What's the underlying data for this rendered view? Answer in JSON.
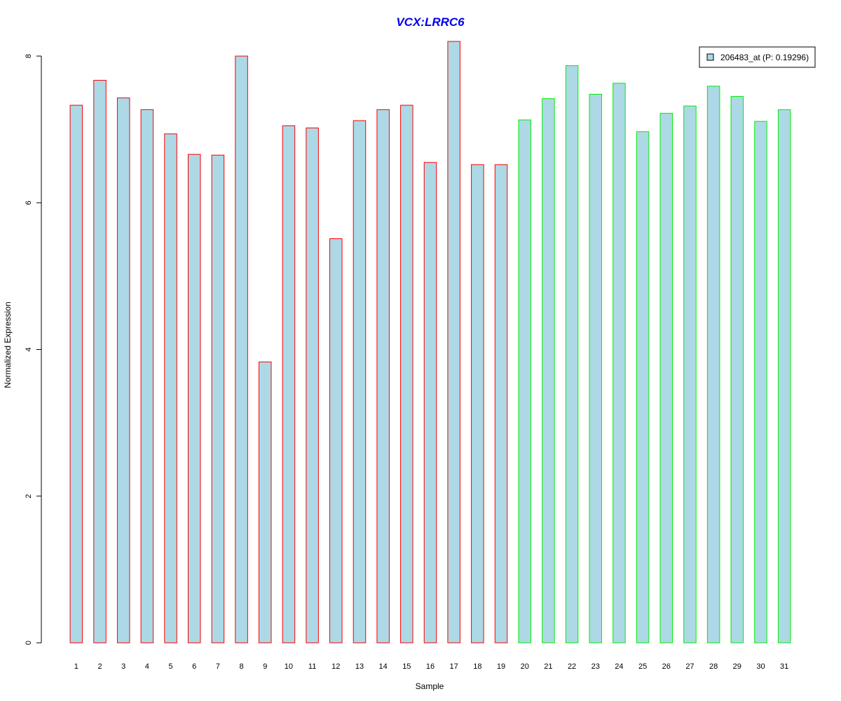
{
  "chart_data": {
    "type": "bar",
    "title": "VCX:LRRC6",
    "xlabel": "Sample",
    "ylabel": "Normalized Expression",
    "ylim": [
      0,
      8.2
    ],
    "yticks": [
      "0",
      "2",
      "4",
      "6",
      "8"
    ],
    "categories": [
      "1",
      "2",
      "3",
      "4",
      "5",
      "6",
      "7",
      "8",
      "9",
      "10",
      "11",
      "12",
      "13",
      "14",
      "15",
      "16",
      "17",
      "18",
      "19",
      "20",
      "21",
      "22",
      "23",
      "24",
      "25",
      "26",
      "27",
      "28",
      "29",
      "30",
      "31"
    ],
    "values": [
      7.33,
      7.67,
      7.43,
      7.27,
      6.94,
      6.66,
      6.65,
      8.0,
      3.83,
      7.05,
      7.02,
      5.51,
      7.12,
      7.27,
      7.33,
      6.55,
      8.2,
      6.52,
      6.52,
      7.13,
      7.42,
      7.87,
      7.48,
      7.63,
      6.97,
      7.22,
      7.32,
      7.59,
      7.45,
      7.11,
      7.27
    ],
    "groups": [
      {
        "start": 0,
        "end": 18,
        "border_color": "#ff0000"
      },
      {
        "start": 19,
        "end": 30,
        "border_color": "#00ee00"
      }
    ],
    "bar_fill": "#add8e6",
    "legend": {
      "label": "206483_at (P: 0.19296)",
      "placement": "top-right"
    },
    "grid": false
  }
}
